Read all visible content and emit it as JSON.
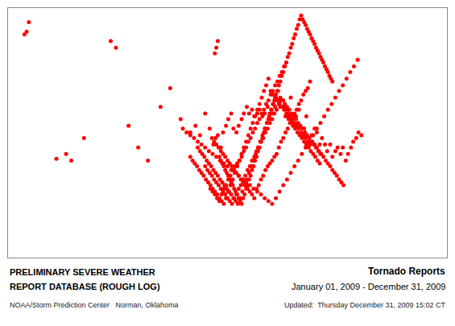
{
  "chart_data": {
    "type": "scatter",
    "title": "Tornado Reports",
    "subtitle": "January 01, 2009 - December 31, 2009",
    "annotations": [
      "PRELIMINARY SEVERE WEATHER",
      "REPORT DATABASE (ROUGH LOG)",
      "NOAA/Storm Prediction Center   Norman, Oklahoma",
      "Updated:  Thursday December 31, 2009 15:02 CT"
    ],
    "color": "#ff0000",
    "xlim": [
      -125,
      -66
    ],
    "ylim": [
      23.5,
      50
    ],
    "xticks": [],
    "yticks": [],
    "tick_labels": false,
    "grid": false,
    "x": [
      -122.5,
      -122.8,
      -117.2,
      -116.5,
      -114.8,
      -122.2,
      -118.5,
      -111.2,
      -110.5,
      -108.8,
      -107.5,
      -106.2,
      -104.5,
      -103.2,
      -101.8,
      -100.5,
      -99.8,
      -99.2,
      -98.5,
      -97.9,
      -97.4,
      -97.1,
      -96.8,
      -96.4,
      -96.1,
      -95.7,
      -95.4,
      -95.0,
      -94.7,
      -94.3,
      -94.0,
      -93.6,
      -93.3,
      -92.9,
      -92.6,
      -92.2,
      -91.9,
      -91.5,
      -91.2,
      -90.8,
      -90.5,
      -90.1,
      -89.8,
      -89.4,
      -89.1,
      -88.7,
      -88.4,
      -88.0,
      -87.7,
      -87.3,
      -87.0,
      -86.6,
      -86.3,
      -85.9,
      -85.6,
      -85.2,
      -84.9,
      -84.5,
      -84.2,
      -83.8,
      -83.5,
      -83.1,
      -82.8,
      -82.4,
      -82.1,
      -81.7,
      -81.4,
      -81.0,
      -80.7,
      -80.3,
      -80.0,
      -79.6,
      -79.3,
      -78.9,
      -78.6,
      -78.2,
      -77.9,
      -77.5,
      -97.6,
      -97.3,
      -97.0,
      -96.7,
      -96.4,
      -96.1,
      -95.8,
      -95.5,
      -95.2,
      -94.9,
      -94.6,
      -94.3,
      -94.0,
      -93.7,
      -93.4,
      -93.1,
      -92.8,
      -92.5,
      -92.2,
      -91.9,
      -91.6,
      -91.3,
      -91.0,
      -90.7,
      -90.4,
      -90.1,
      -89.8,
      -89.5,
      -89.2,
      -88.9,
      -88.6,
      -88.3,
      -88.0,
      -87.7,
      -87.4,
      -87.1,
      -86.8,
      -86.5,
      -86.2,
      -85.9,
      -85.6,
      -85.3,
      -85.0,
      -84.7,
      -84.4,
      -84.1,
      -83.8,
      -83.5,
      -83.2,
      -82.9,
      -82.6,
      -82.3,
      -82.0,
      -81.7,
      -81.4,
      -81.1,
      -80.8,
      -80.5,
      -80.2,
      -79.9,
      -97.8,
      -97.5,
      -97.2,
      -96.9,
      -96.6,
      -96.3,
      -96.0,
      -95.7,
      -95.4,
      -95.1,
      -94.8,
      -94.5,
      -94.2,
      -93.9,
      -93.6,
      -93.3,
      -93.0,
      -92.7,
      -92.4,
      -92.1,
      -91.8,
      -91.5,
      -91.2,
      -90.9,
      -90.6,
      -90.3,
      -90.0,
      -89.7,
      -89.4,
      -89.1,
      -88.8,
      -88.5,
      -88.2,
      -87.9,
      -87.6,
      -87.3,
      -87.0,
      -86.7,
      -86.4,
      -86.1,
      -85.8,
      -85.5,
      -85.2,
      -84.9,
      -84.6,
      -84.3,
      -84.0,
      -83.7,
      -83.4,
      -83.1,
      -98.5,
      -98.2,
      -97.9,
      -97.6,
      -97.3,
      -97.0,
      -96.7,
      -96.4,
      -96.1,
      -95.8,
      -95.5,
      -95.2,
      -94.9,
      -94.6,
      -94.3,
      -94.0,
      -93.7,
      -93.4,
      -93.1,
      -92.8,
      -92.5,
      -92.2,
      -91.9,
      -91.6,
      -91.3,
      -91.0,
      -90.7,
      -90.4,
      -90.1,
      -89.8,
      -89.5,
      -89.2,
      -88.9,
      -88.6,
      -88.3,
      -88.0,
      -87.7,
      -87.4,
      -87.1,
      -86.8,
      -86.5,
      -86.2,
      -85.9,
      -85.6,
      -85.3,
      -85.0,
      -84.7,
      -84.4,
      -99.5,
      -99.2,
      -98.9,
      -98.6,
      -98.3,
      -98.0,
      -97.7,
      -97.4,
      -97.1,
      -96.8,
      -96.5,
      -96.2,
      -95.9,
      -95.6,
      -95.3,
      -95.0,
      -94.7,
      -94.4,
      -94.1,
      -93.8,
      -93.5,
      -93.2,
      -92.9,
      -92.6,
      -92.3,
      -92.0,
      -91.7,
      -91.4,
      -91.1,
      -90.8,
      -90.5,
      -90.2,
      -89.9,
      -89.6,
      -89.3,
      -89.0,
      -88.7,
      -88.4,
      -88.1,
      -87.8,
      -87.5,
      -87.2,
      -86.9,
      -86.6,
      -86.3,
      -86.0,
      -85.7,
      -85.4,
      -85.1,
      -84.8,
      -84.5,
      -84.2,
      -83.9,
      -83.6,
      -83.3,
      -83.0,
      -100.5,
      -100.2,
      -99.9,
      -99.6,
      -99.3,
      -99.0,
      -98.7,
      -98.4,
      -98.1,
      -97.8,
      -97.5,
      -97.2,
      -96.9,
      -96.6,
      -96.3,
      -96.0,
      -95.7,
      -95.4,
      -95.1,
      -94.8,
      -94.5,
      -94.2,
      -93.9,
      -93.6,
      -93.3,
      -93.0,
      -92.7,
      -92.4,
      -92.1,
      -91.8,
      -91.5,
      -91.2,
      -90.9,
      -90.6,
      -90.3,
      -90.0,
      -89.7,
      -89.4,
      -89.1,
      -88.8,
      -88.5,
      -88.2,
      -87.9,
      -87.6,
      -87.3,
      -87.0,
      -86.7,
      -86.4,
      -101.5,
      -101.0,
      -100.5,
      -100.0,
      -99.5,
      -99.0,
      -98.5,
      -98.0,
      -97.5,
      -97.0,
      -96.5,
      -96.0,
      -95.5,
      -95.0,
      -94.5,
      -94.0,
      -93.5,
      -93.0,
      -92.5,
      -92.0,
      -91.5,
      -91.0,
      -90.5,
      -90.0,
      -89.5,
      -89.0,
      -88.5,
      -88.0,
      -87.5,
      -87.0,
      -86.5,
      -86.0,
      -85.5,
      -85.0,
      -84.5,
      -84.0,
      -83.5,
      -83.0,
      -82.5,
      -82.0,
      -81.5,
      -81.0,
      -80.5,
      -80.0,
      -79.5,
      -79.0,
      -78.5,
      -78.0,
      -97.2,
      -97.0,
      -96.8,
      -96.6,
      -96.4,
      -96.2,
      -96.0,
      -95.8,
      -95.6,
      -95.4,
      -95.2,
      -95.0,
      -94.8,
      -94.6,
      -94.4,
      -94.2,
      -94.0,
      -93.8,
      -93.6,
      -93.4,
      -93.2,
      -93.0,
      -92.8,
      -92.6,
      -92.4,
      -92.2,
      -92.0,
      -91.8,
      -91.6,
      -91.4,
      -91.2,
      -91.0,
      -90.8,
      -90.6,
      -90.4,
      -90.2,
      -90.0,
      -89.8,
      -89.6,
      -89.4,
      -89.2,
      -89.0,
      -88.8,
      -88.6,
      -88.4,
      -88.2,
      -88.0,
      -87.8,
      -87.6,
      -87.4,
      -87.2,
      -87.0,
      -86.8,
      -86.6,
      -86.4,
      -86.2,
      -86.0,
      -85.8,
      -85.6,
      -85.4,
      -85.2,
      -85.0,
      -84.8,
      -84.6,
      -84.4,
      -84.2,
      -84.0,
      -83.8,
      -83.6,
      -83.4,
      -83.2,
      -83.0,
      -82.8,
      -82.6,
      -82.4,
      -82.2,
      -82.0,
      -81.8,
      -81.6,
      -81.4
    ],
    "y": [
      47.5,
      47.2,
      34.5,
      33.8,
      36.2,
      48.5,
      34.0,
      46.5,
      45.8,
      37.5,
      35.2,
      33.8,
      39.5,
      41.5,
      38.2,
      36.8,
      37.5,
      36.5,
      38.8,
      37.2,
      35.5,
      36.2,
      36.5,
      35.2,
      36.8,
      37.5,
      38.2,
      38.8,
      37.2,
      36.8,
      37.5,
      38.2,
      38.8,
      39.5,
      38.8,
      39.2,
      38.5,
      38.8,
      39.2,
      38.5,
      38.8,
      39.5,
      38.2,
      38.8,
      39.5,
      40.2,
      39.5,
      40.2,
      38.5,
      39.2,
      40.5,
      37.8,
      38.5,
      39.2,
      36.5,
      37.2,
      38.5,
      35.8,
      36.5,
      37.2,
      36.8,
      35.5,
      36.2,
      35.5,
      34.8,
      35.5,
      34.2,
      34.8,
      35.2,
      34.5,
      35.2,
      33.8,
      34.5,
      35.2,
      35.8,
      36.2,
      36.8,
      36.5,
      36.2,
      35.8,
      35.5,
      35.2,
      34.8,
      34.5,
      34.2,
      33.8,
      33.5,
      33.2,
      32.8,
      32.5,
      32.2,
      31.8,
      31.5,
      31.2,
      30.8,
      30.5,
      30.2,
      29.8,
      30.8,
      31.2,
      31.8,
      32.2,
      32.8,
      33.2,
      33.5,
      33.8,
      34.2,
      34.5,
      35.2,
      35.8,
      36.2,
      36.8,
      37.2,
      37.8,
      38.2,
      38.8,
      39.2,
      39.8,
      40.2,
      40.8,
      41.2,
      41.5,
      42.2,
      35.8,
      35.5,
      35.2,
      34.8,
      34.5,
      34.2,
      33.8,
      33.5,
      33.2,
      32.8,
      32.5,
      32.2,
      31.8,
      31.5,
      31.2,
      30.8,
      30.5,
      30.2,
      29.8,
      29.5,
      30.2,
      30.8,
      31.2,
      31.8,
      32.2,
      32.8,
      33.2,
      33.5,
      33.8,
      34.2,
      34.8,
      35.2,
      35.8,
      36.2,
      36.8,
      37.2,
      37.8,
      38.2,
      38.8,
      39.2,
      39.8,
      40.2,
      40.8,
      41.2,
      41.8,
      42.2,
      42.8,
      43.2,
      43.8,
      44.2,
      38.2,
      37.8,
      37.5,
      37.2,
      36.8,
      36.5,
      36.2,
      35.8,
      35.5,
      35.2,
      34.8,
      34.5,
      34.2,
      33.8,
      33.5,
      33.2,
      32.8,
      32.5,
      32.2,
      31.8,
      31.5,
      31.2,
      30.8,
      30.5,
      30.2,
      29.8,
      29.5,
      29.2,
      29.8,
      30.2,
      30.8,
      31.2,
      31.8,
      32.2,
      32.8,
      33.2,
      33.8,
      34.2,
      34.8,
      35.2,
      35.8,
      36.2,
      36.8,
      37.2,
      37.8,
      38.2,
      38.8,
      39.2,
      39.8,
      40.2,
      39.5,
      39.2,
      38.8,
      38.5,
      38.2,
      37.8,
      37.5,
      37.2,
      36.8,
      36.5,
      36.2,
      35.8,
      35.5,
      35.2,
      34.8,
      34.5,
      34.2,
      33.8,
      33.5,
      33.2,
      32.8,
      32.5,
      32.2,
      31.8,
      31.5,
      31.2,
      30.8,
      30.5,
      30.2,
      29.8,
      29.5,
      29.2,
      29.8,
      30.5,
      31.2,
      31.8,
      32.5,
      33.2,
      33.8,
      34.5,
      35.2,
      35.8,
      36.5,
      37.2,
      37.8,
      38.5,
      39.2,
      39.8,
      40.5,
      41.2,
      40.5,
      40.2,
      39.8,
      39.5,
      39.2,
      38.8,
      38.5,
      38.2,
      37.8,
      37.5,
      37.2,
      36.8,
      36.5,
      36.2,
      35.8,
      35.5,
      35.2,
      34.8,
      34.5,
      34.2,
      33.8,
      33.5,
      33.2,
      32.8,
      32.5,
      32.2,
      31.8,
      31.5,
      31.2,
      30.8,
      30.5,
      30.2,
      29.8,
      29.5,
      29.2,
      29.8,
      30.5,
      31.2,
      31.8,
      32.5,
      33.2,
      33.8,
      34.5,
      35.2,
      35.8,
      36.5,
      37.2,
      37.8,
      38.5,
      39.2,
      39.8,
      40.5,
      41.2,
      41.8,
      42.5,
      41.2,
      40.8,
      40.5,
      40.2,
      39.8,
      39.5,
      39.2,
      38.8,
      38.5,
      38.2,
      37.8,
      37.5,
      37.2,
      36.8,
      36.5,
      36.2,
      35.8,
      35.5,
      35.2,
      34.8,
      34.5,
      34.2,
      33.8,
      33.5,
      33.2,
      32.8,
      32.5,
      32.2,
      31.8,
      31.5,
      31.2,
      30.8,
      30.5,
      30.2,
      29.8,
      29.5,
      29.2,
      29.8,
      30.5,
      31.2,
      31.8,
      32.5,
      33.2,
      33.8,
      34.5,
      35.2,
      35.8,
      36.5,
      37.2,
      37.8,
      38.5,
      39.2,
      39.8,
      40.5,
      41.2,
      41.8,
      42.5,
      43.2,
      43.8,
      44.5,
      45.2,
      45.8,
      46.5,
      34.2,
      33.8,
      33.5,
      33.2,
      32.8,
      32.5,
      32.2,
      31.8,
      31.5,
      31.2,
      30.8,
      30.5,
      30.2,
      29.8,
      29.5,
      29.2,
      29.8,
      30.2,
      30.8,
      31.2,
      31.8,
      32.2,
      32.8,
      33.2,
      33.8,
      34.2,
      34.8,
      35.2,
      35.8,
      36.2,
      36.8,
      37.2,
      37.8,
      38.2,
      38.8,
      39.2,
      39.8,
      40.2,
      40.8,
      41.2,
      41.8,
      42.2,
      42.8,
      43.2,
      43.8,
      44.2,
      44.8,
      45.2,
      45.8,
      46.2,
      46.8,
      47.2,
      47.8,
      48.2,
      48.8,
      49.2,
      48.8,
      48.5,
      48.2,
      47.8,
      47.5,
      47.2,
      46.8,
      46.5,
      46.2,
      45.8,
      45.5,
      45.2,
      44.8,
      44.5,
      44.2,
      43.8,
      43.5,
      43.2,
      42.8,
      42.5,
      42.2
    ]
  }
}
